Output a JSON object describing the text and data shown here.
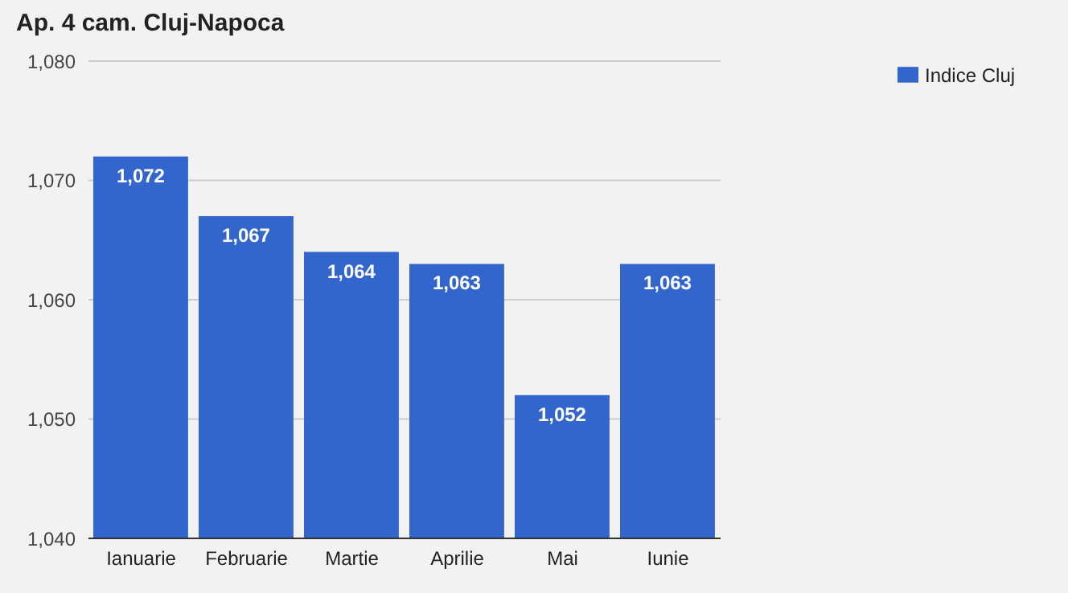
{
  "chart_data": {
    "type": "bar",
    "title": "Ap. 4 cam. Cluj-Napoca",
    "categories": [
      "Ianuarie",
      "Februarie",
      "Martie",
      "Aprilie",
      "Mai",
      "Iunie"
    ],
    "series": [
      {
        "name": "Indice Cluj",
        "color": "#3366cc",
        "values": [
          1072,
          1067,
          1064,
          1063,
          1052,
          1063
        ],
        "value_labels": [
          "1,072",
          "1,067",
          "1,064",
          "1,063",
          "1,052",
          "1,063"
        ]
      }
    ],
    "ylim": [
      1040,
      1080
    ],
    "yticks": [
      {
        "value": 1040,
        "label": "1,040"
      },
      {
        "value": 1050,
        "label": "1,050"
      },
      {
        "value": 1060,
        "label": "1,060"
      },
      {
        "value": 1070,
        "label": "1,070"
      },
      {
        "value": 1080,
        "label": "1,080"
      }
    ],
    "grid": "y",
    "legend": "top right"
  }
}
